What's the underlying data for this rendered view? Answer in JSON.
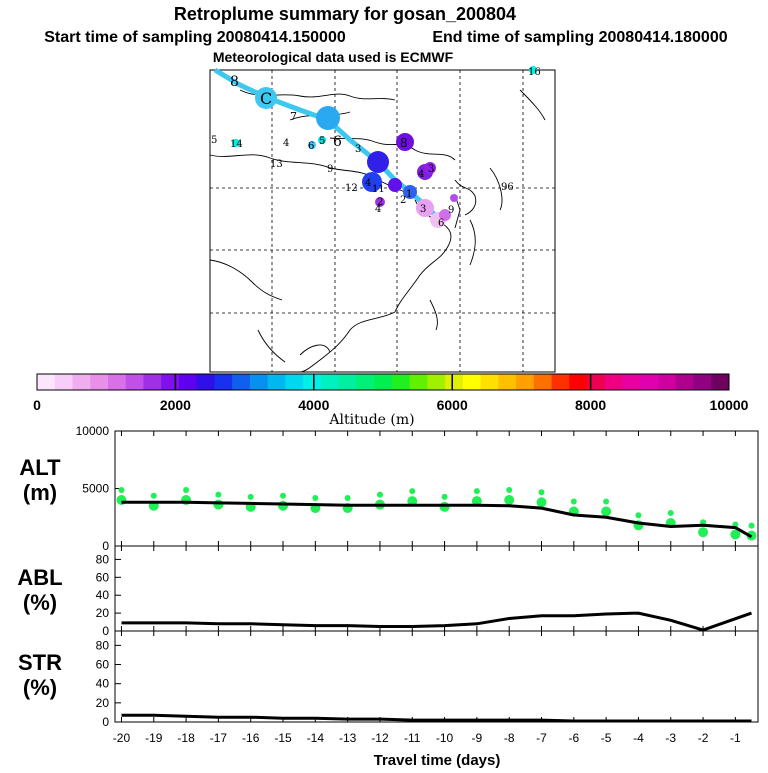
{
  "title_line1": "Retroplume summary for gosan_200804",
  "start_label": "Start time of sampling 20080414.150000",
  "end_label": "End time of sampling 20080414.180000",
  "met_label": "Meteorological data used is ECMWF",
  "map": {
    "path_labels": [
      {
        "text": "8",
        "lon": 0,
        "lat": 0
      },
      {
        "text": "C",
        "lon": 0,
        "lat": 0
      }
    ],
    "numbers": [
      "16",
      "5",
      "14",
      "4",
      "13",
      "6",
      "5",
      "6",
      "3",
      "9",
      "7",
      "12",
      "4",
      "8",
      "11",
      "96",
      "4",
      "2",
      "3",
      "4",
      "3",
      "9",
      "1",
      "6",
      "2"
    ]
  },
  "colorbar": {
    "ticks": [
      "0",
      "2000",
      "4000",
      "6000",
      "8000",
      "10000"
    ],
    "label": "Altitude (m)",
    "colors": [
      "#fce6fc",
      "#f8cef8",
      "#f0aef0",
      "#e890e8",
      "#d870e8",
      "#c050e8",
      "#a030e8",
      "#8010f0",
      "#6000f0",
      "#3010e8",
      "#1830f0",
      "#1060f0",
      "#0890f0",
      "#00b8f0",
      "#00d8f0",
      "#00f0e8",
      "#00f0c0",
      "#00f0a0",
      "#00f078",
      "#00f050",
      "#20f020",
      "#60f000",
      "#a0f000",
      "#e0f000",
      "#ffff00",
      "#ffe000",
      "#ffc000",
      "#ffa000",
      "#ff7000",
      "#ff3000",
      "#ff0000",
      "#f00050",
      "#f00080",
      "#e800a0",
      "#e000b0",
      "#d000a0",
      "#b00090",
      "#900080",
      "#700060"
    ]
  },
  "chart_data": [
    {
      "type": "line",
      "name": "ALT",
      "ylabel": "ALT",
      "yunit": "(m)",
      "ylim": [
        0,
        10000
      ],
      "yticks": [
        0,
        5000,
        10000
      ],
      "xlim": [
        -20.2,
        -0.3
      ],
      "x": [
        -20,
        -19,
        -18,
        -17,
        -16,
        -15,
        -14,
        -13,
        -12,
        -11,
        -10,
        -9,
        -8,
        -7,
        -6,
        -5,
        -4,
        -3,
        -2,
        -1,
        -0.5
      ],
      "values": [
        3800,
        3800,
        3800,
        3750,
        3700,
        3650,
        3600,
        3550,
        3550,
        3550,
        3550,
        3550,
        3500,
        3300,
        2700,
        2500,
        2000,
        1700,
        1800,
        1600,
        800
      ],
      "scatter_x": [
        -20,
        -19,
        -18,
        -17,
        -16,
        -15,
        -14,
        -13,
        -12,
        -11,
        -10,
        -9,
        -8,
        -7,
        -6,
        -5,
        -4,
        -3,
        -2,
        -1,
        -0.5
      ],
      "scatter_values": [
        4000,
        3500,
        4000,
        3600,
        3400,
        3500,
        3300,
        3300,
        3600,
        3900,
        3400,
        3900,
        4000,
        3800,
        3000,
        3000,
        1800,
        2000,
        1200,
        1000,
        900
      ]
    },
    {
      "type": "line",
      "name": "ABL",
      "ylabel": "ABL",
      "yunit": "(%)",
      "ylim": [
        0,
        95
      ],
      "yticks": [
        0,
        20,
        40,
        60,
        80
      ],
      "xlim": [
        -20.2,
        -0.3
      ],
      "x": [
        -20,
        -19,
        -18,
        -17,
        -16,
        -15,
        -14,
        -13,
        -12,
        -11,
        -10,
        -9,
        -8,
        -7,
        -6,
        -5,
        -4,
        -3,
        -2,
        -0.5
      ],
      "values": [
        9,
        9,
        9,
        8,
        8,
        7,
        6,
        6,
        5,
        5,
        6,
        8,
        14,
        17,
        17,
        19,
        20,
        12,
        1,
        20
      ]
    },
    {
      "type": "line",
      "name": "STR",
      "ylabel": "STR",
      "yunit": "(%)",
      "ylim": [
        0,
        95
      ],
      "yticks": [
        0,
        20,
        40,
        60,
        80
      ],
      "xlim": [
        -20.2,
        -0.3
      ],
      "x": [
        -20,
        -19,
        -18,
        -17,
        -16,
        -15,
        -14,
        -13,
        -12,
        -11,
        -10,
        -9,
        -8,
        -7,
        -6,
        -5,
        -4,
        -3,
        -2,
        -1,
        -0.5
      ],
      "values": [
        7,
        7,
        6,
        5,
        5,
        4,
        4,
        3,
        3,
        2,
        2,
        2,
        2,
        2,
        1,
        1,
        1,
        1,
        1,
        1,
        1
      ]
    }
  ],
  "xaxis": {
    "ticks": [
      "-20",
      "-19",
      "-18",
      "-17",
      "-16",
      "-15",
      "-14",
      "-13",
      "-12",
      "-11",
      "-10",
      "-9",
      "-8",
      "-7",
      "-6",
      "-5",
      "-4",
      "-3",
      "-2",
      "-1"
    ],
    "label": "Travel time (days)"
  },
  "colors": {
    "line": "#000000",
    "dots": "#22ee55",
    "path": "#3cc8f0"
  }
}
